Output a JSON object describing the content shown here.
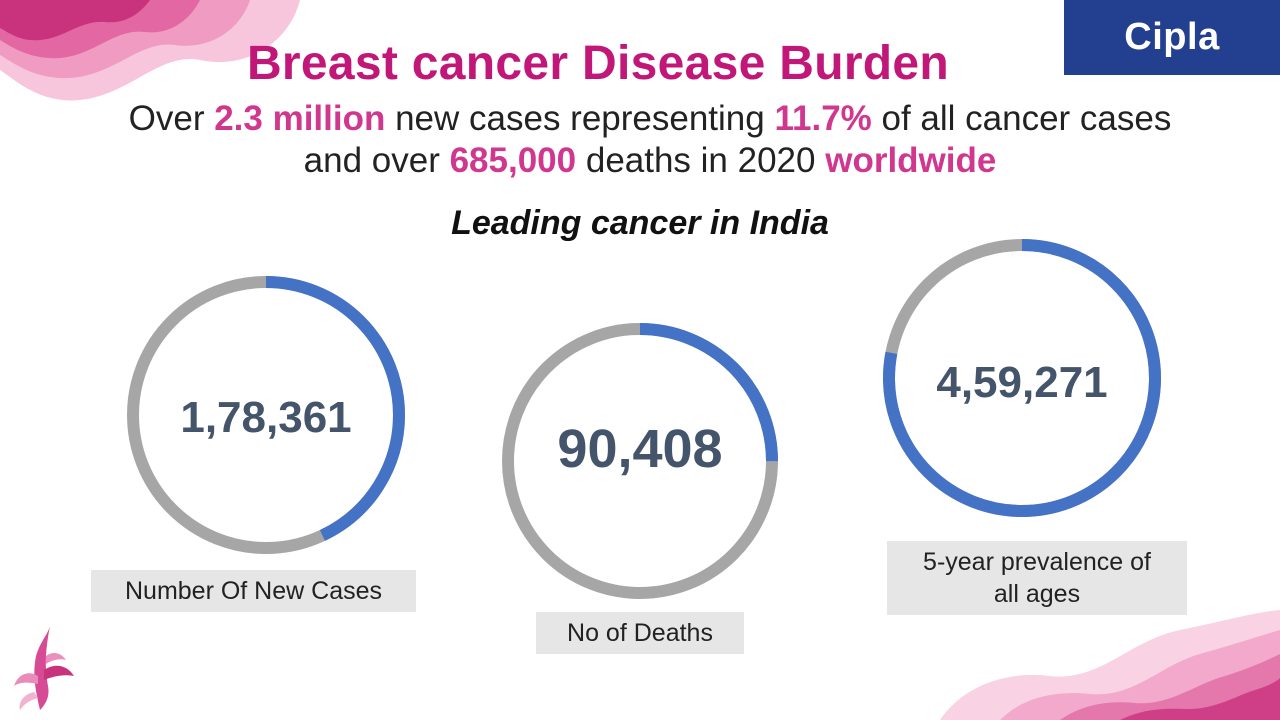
{
  "header": {
    "brand": "Cipla",
    "title": "Breast cancer Disease Burden",
    "subtitle": {
      "t1": "Over ",
      "h1": "2.3 million",
      "t2": " new cases representing ",
      "h2": "11.7%",
      "t3": " of all cancer cases",
      "t4": "and over ",
      "h3": "685,000",
      "t5": " deaths in 2020 ",
      "h4": "worldwide"
    }
  },
  "section_title": "Leading cancer in India",
  "stats": [
    {
      "value": "1,78,361",
      "label": "Number Of New Cases",
      "fraction": 0.43
    },
    {
      "value": "90,408",
      "label": "No of Deaths",
      "fraction": 0.25
    },
    {
      "value": "4,59,271",
      "label_line1": "5-year prevalence of",
      "label_line2": "all ages",
      "fraction": 0.78
    }
  ],
  "colors": {
    "brand_bg": "#233f8f",
    "title": "#c01779",
    "highlight": "#d0378e",
    "ring_fill": "#4472c4",
    "ring_track": "#a6a6a6",
    "value_text": "#44546a"
  }
}
